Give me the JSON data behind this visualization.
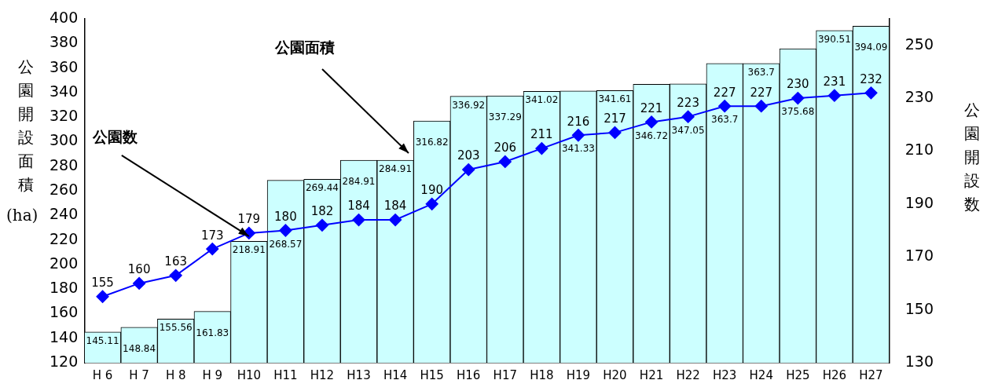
{
  "chart_data": {
    "type": "bar",
    "ylabel": "公園開設面積 (ha)",
    "y2label": "公園開設数",
    "categories": [
      "H 6",
      "H 7",
      "H 8",
      "H 9",
      "H10",
      "H11",
      "H12",
      "H13",
      "H14",
      "H15",
      "H16",
      "H17",
      "H18",
      "H19",
      "H20",
      "H21",
      "H22",
      "H23",
      "H24",
      "H25",
      "H26",
      "H27"
    ],
    "series": [
      {
        "color": "#ccffff",
        "values": [
          145.11,
          148.84,
          155.56,
          161.83,
          218.91,
          268.57,
          269.44,
          284.91,
          284.91,
          316.82,
          336.92,
          337.29,
          341.02,
          341.33,
          341.61,
          346.72,
          347.05,
          363.7,
          363.7,
          375.68,
          390.51,
          394.09
        ]
      },
      {
        "type": "line",
        "axis": "y2",
        "color": "#0000ff",
        "marker": "diamond",
        "values": [
          155,
          160,
          163,
          173,
          179,
          180,
          182,
          184,
          184,
          190,
          203,
          206,
          211,
          216,
          217,
          221,
          223,
          227,
          227,
          230,
          231,
          232
        ]
      }
    ],
    "ylim": [
      120,
      400
    ],
    "yticks": [
      120,
      140,
      160,
      180,
      200,
      220,
      240,
      260,
      280,
      300,
      320,
      340,
      360,
      380,
      400
    ],
    "y2lim": [
      130,
      260
    ],
    "y2ticks": [
      130,
      150,
      170,
      190,
      210,
      230,
      250
    ],
    "data_labels": true,
    "grid": false,
    "legend": false,
    "annotations": [
      "公園面積",
      {
        "text": "公園数",
        "x": "H10",
        "y": 223
      }
    ]
  }
}
